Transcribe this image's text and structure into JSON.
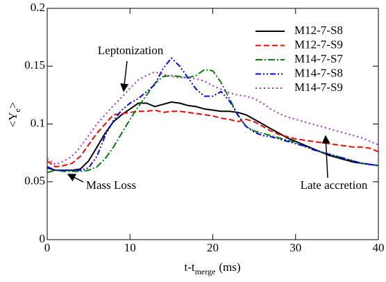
{
  "chart_data": {
    "type": "line",
    "xlabel": {
      "main": "t-t",
      "sub": "merge",
      "tail": "(ms)"
    },
    "ylabel": {
      "main": "<Y",
      "sub": "e",
      "tail": ">"
    },
    "x": [
      0,
      1,
      2,
      3,
      4,
      5,
      6,
      7,
      8,
      9,
      10,
      11,
      12,
      13,
      14,
      15,
      16,
      17,
      18,
      19,
      20,
      21,
      22,
      23,
      24,
      25,
      26,
      27,
      28,
      29,
      30,
      31,
      32,
      33,
      34,
      35,
      36,
      37,
      38,
      39,
      40
    ],
    "xlim": [
      0,
      40
    ],
    "xticks": [
      0,
      10,
      20,
      30,
      40
    ],
    "ylim": [
      0,
      0.2
    ],
    "yticks": [
      0,
      0.05,
      0.1,
      0.15,
      0.2
    ],
    "legend": "upper right",
    "series": [
      {
        "name": "M12-7-S8",
        "color": "#000000",
        "dash": "none",
        "values": [
          0.062,
          0.06,
          0.06,
          0.06,
          0.061,
          0.068,
          0.08,
          0.092,
          0.102,
          0.108,
          0.113,
          0.118,
          0.118,
          0.115,
          0.117,
          0.119,
          0.118,
          0.116,
          0.115,
          0.113,
          0.112,
          0.111,
          0.111,
          0.11,
          0.108,
          0.104,
          0.1,
          0.096,
          0.092,
          0.088,
          0.085,
          0.082,
          0.079,
          0.076,
          0.073,
          0.071,
          0.069,
          0.067,
          0.066,
          0.065,
          0.064
        ]
      },
      {
        "name": "M12-7-S9",
        "color": "#ff0000",
        "dash": "8,4",
        "values": [
          0.068,
          0.063,
          0.064,
          0.066,
          0.072,
          0.082,
          0.092,
          0.1,
          0.108,
          0.109,
          0.11,
          0.111,
          0.111,
          0.112,
          0.11,
          0.111,
          0.111,
          0.11,
          0.109,
          0.108,
          0.107,
          0.105,
          0.104,
          0.102,
          0.104,
          0.102,
          0.098,
          0.094,
          0.091,
          0.089,
          0.087,
          0.086,
          0.085,
          0.084,
          0.083,
          0.082,
          0.081,
          0.08,
          0.08,
          0.079,
          0.076
        ]
      },
      {
        "name": "M14-7-S7",
        "color": "#008000",
        "dash": "10,3,2,3",
        "values": [
          0.058,
          0.06,
          0.059,
          0.059,
          0.059,
          0.06,
          0.063,
          0.07,
          0.08,
          0.092,
          0.104,
          0.115,
          0.125,
          0.135,
          0.141,
          0.142,
          0.141,
          0.14,
          0.142,
          0.147,
          0.146,
          0.136,
          0.122,
          0.108,
          0.098,
          0.094,
          0.092,
          0.09,
          0.088,
          0.086,
          0.084,
          0.081,
          0.078,
          0.076,
          0.074,
          0.072,
          0.07,
          0.068,
          0.066,
          0.065,
          0.064
        ]
      },
      {
        "name": "M14-7-S8",
        "color": "#0000ff",
        "dash": "8,3,2,3,2,3",
        "values": [
          0.063,
          0.06,
          0.06,
          0.06,
          0.06,
          0.062,
          0.072,
          0.09,
          0.103,
          0.112,
          0.118,
          0.122,
          0.128,
          0.134,
          0.148,
          0.157,
          0.15,
          0.14,
          0.13,
          0.124,
          0.124,
          0.128,
          0.12,
          0.108,
          0.098,
          0.093,
          0.09,
          0.089,
          0.087,
          0.085,
          0.083,
          0.081,
          0.078,
          0.076,
          0.074,
          0.072,
          0.07,
          0.068,
          0.066,
          0.065,
          0.064
        ]
      },
      {
        "name": "M14-7-S9",
        "color": "#a020f0",
        "dash": "2,4",
        "values": [
          0.07,
          0.065,
          0.068,
          0.072,
          0.08,
          0.09,
          0.1,
          0.108,
          0.116,
          0.123,
          0.131,
          0.138,
          0.142,
          0.145,
          0.143,
          0.141,
          0.14,
          0.14,
          0.139,
          0.137,
          0.133,
          0.13,
          0.127,
          0.125,
          0.124,
          0.122,
          0.118,
          0.113,
          0.109,
          0.106,
          0.104,
          0.102,
          0.1,
          0.098,
          0.096,
          0.094,
          0.092,
          0.09,
          0.088,
          0.085,
          0.082
        ]
      }
    ],
    "annotations": [
      "Leptonization",
      "Mass Loss",
      "Late accretion"
    ]
  }
}
